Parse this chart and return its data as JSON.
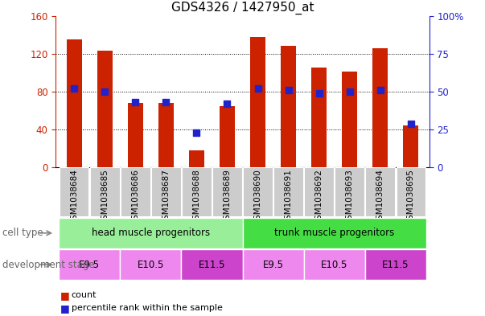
{
  "title": "GDS4326 / 1427950_at",
  "samples": [
    "GSM1038684",
    "GSM1038685",
    "GSM1038686",
    "GSM1038687",
    "GSM1038688",
    "GSM1038689",
    "GSM1038690",
    "GSM1038691",
    "GSM1038692",
    "GSM1038693",
    "GSM1038694",
    "GSM1038695"
  ],
  "counts": [
    135,
    123,
    68,
    68,
    18,
    65,
    138,
    128,
    105,
    101,
    126,
    44
  ],
  "percentiles": [
    52,
    50,
    43,
    43,
    23,
    42,
    52,
    51,
    49,
    50,
    51,
    29
  ],
  "ylim_left": [
    0,
    160
  ],
  "ylim_right": [
    0,
    100
  ],
  "yticks_left": [
    0,
    40,
    80,
    120,
    160
  ],
  "yticks_right": [
    0,
    25,
    50,
    75,
    100
  ],
  "bar_color": "#cc2200",
  "dot_color": "#2222cc",
  "grid_color": "#000000",
  "title_color": "#000000",
  "left_tick_color": "#cc2200",
  "right_tick_color": "#2222cc",
  "cell_type_groups": [
    {
      "label": "head muscle progenitors",
      "start": 0,
      "end": 5,
      "color": "#99ee99"
    },
    {
      "label": "trunk muscle progenitors",
      "start": 6,
      "end": 11,
      "color": "#44dd44"
    }
  ],
  "dev_stage_groups": [
    {
      "label": "E9.5",
      "start": 0,
      "end": 1,
      "color": "#ee88ee"
    },
    {
      "label": "E10.5",
      "start": 2,
      "end": 3,
      "color": "#ee88ee"
    },
    {
      "label": "E11.5",
      "start": 4,
      "end": 5,
      "color": "#cc44cc"
    },
    {
      "label": "E9.5",
      "start": 6,
      "end": 7,
      "color": "#ee88ee"
    },
    {
      "label": "E10.5",
      "start": 8,
      "end": 9,
      "color": "#ee88ee"
    },
    {
      "label": "E11.5",
      "start": 10,
      "end": 11,
      "color": "#cc44cc"
    }
  ],
  "legend_count_label": "count",
  "legend_pct_label": "percentile rank within the sample",
  "cell_type_label": "cell type",
  "dev_stage_label": "development stage",
  "bar_width": 0.5,
  "dot_size": 35,
  "sample_box_color": "#cccccc",
  "figsize": [
    6.03,
    3.93
  ],
  "dpi": 100
}
